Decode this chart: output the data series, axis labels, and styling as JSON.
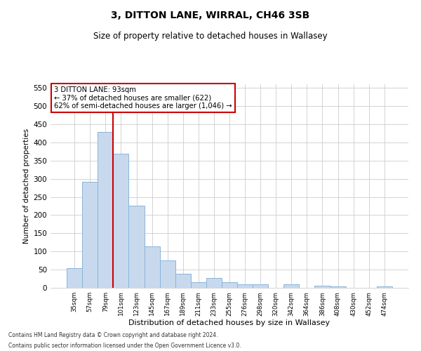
{
  "title": "3, DITTON LANE, WIRRAL, CH46 3SB",
  "subtitle": "Size of property relative to detached houses in Wallasey",
  "xlabel": "Distribution of detached houses by size in Wallasey",
  "ylabel": "Number of detached properties",
  "categories": [
    "35sqm",
    "57sqm",
    "79sqm",
    "101sqm",
    "123sqm",
    "145sqm",
    "167sqm",
    "189sqm",
    "211sqm",
    "233sqm",
    "255sqm",
    "276sqm",
    "298sqm",
    "320sqm",
    "342sqm",
    "364sqm",
    "386sqm",
    "408sqm",
    "430sqm",
    "452sqm",
    "474sqm"
  ],
  "values": [
    55,
    292,
    428,
    368,
    225,
    113,
    75,
    38,
    16,
    27,
    15,
    10,
    10,
    0,
    10,
    0,
    5,
    3,
    0,
    0,
    3
  ],
  "bar_color": "#c8d9ee",
  "bar_edge_color": "#8ab4d8",
  "vline_x_index": 2,
  "vline_color": "#cc0000",
  "annotation_text": "3 DITTON LANE: 93sqm\n← 37% of detached houses are smaller (622)\n62% of semi-detached houses are larger (1,046) →",
  "annotation_box_color": "white",
  "annotation_box_edge_color": "#cc0000",
  "ylim": [
    0,
    560
  ],
  "yticks": [
    0,
    50,
    100,
    150,
    200,
    250,
    300,
    350,
    400,
    450,
    500,
    550
  ],
  "footer_line1": "Contains HM Land Registry data © Crown copyright and database right 2024.",
  "footer_line2": "Contains public sector information licensed under the Open Government Licence v3.0.",
  "bg_color": "#ffffff",
  "grid_color": "#cccccc"
}
